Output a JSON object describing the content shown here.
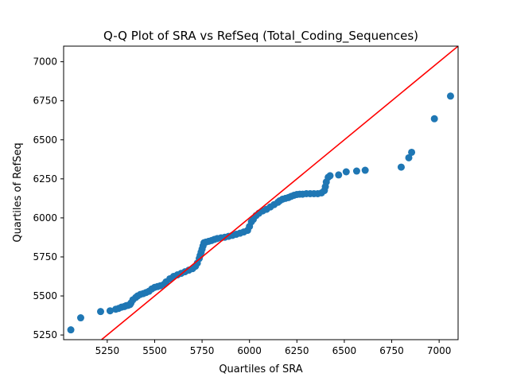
{
  "chart_data": {
    "type": "scatter",
    "title": "Q-Q Plot of SRA vs RefSeq (Total_Coding_Sequences)",
    "xlabel": "Quartiles of SRA",
    "ylabel": "Quartiles of RefSeq",
    "xlim": [
      5020,
      7100
    ],
    "ylim": [
      5220,
      7100
    ],
    "xticks": [
      5250,
      5500,
      5750,
      6000,
      6250,
      6500,
      6750,
      7000
    ],
    "yticks": [
      5250,
      5500,
      5750,
      6000,
      6250,
      6500,
      6750,
      7000
    ],
    "point_color": "#1f77b4",
    "reference_line": {
      "color": "#ff0000",
      "from": [
        5020,
        5020
      ],
      "to": [
        7100,
        7100
      ]
    },
    "grid": false,
    "series": [
      {
        "x": [
          5058,
          5110,
          5215,
          5265,
          5295,
          5310,
          5325,
          5340,
          5350,
          5360,
          5370,
          5375,
          5385,
          5400,
          5410,
          5425,
          5440,
          5455,
          5470,
          5485,
          5500,
          5515,
          5530,
          5550,
          5560,
          5580,
          5600,
          5620,
          5640,
          5660,
          5680,
          5700,
          5715,
          5725,
          5735,
          5740,
          5745,
          5750,
          5755,
          5760,
          5770,
          5785,
          5800,
          5815,
          5830,
          5850,
          5870,
          5890,
          5910,
          5930,
          5950,
          5970,
          5990,
          6000,
          6010,
          6020,
          6035,
          6050,
          6070,
          6090,
          6110,
          6130,
          6150,
          6160,
          6175,
          6190,
          6205,
          6220,
          6235,
          6250,
          6265,
          6280,
          6300,
          6320,
          6340,
          6360,
          6380,
          6395,
          6400,
          6405,
          6415,
          6425,
          6470,
          6510,
          6565,
          6610,
          6800,
          6840,
          6855,
          6975,
          7060
        ],
        "y": [
          5283,
          5360,
          5400,
          5405,
          5415,
          5420,
          5428,
          5432,
          5438,
          5440,
          5445,
          5455,
          5475,
          5490,
          5500,
          5510,
          5515,
          5522,
          5530,
          5545,
          5555,
          5560,
          5565,
          5575,
          5590,
          5610,
          5625,
          5635,
          5645,
          5655,
          5665,
          5675,
          5690,
          5710,
          5740,
          5760,
          5780,
          5800,
          5820,
          5840,
          5845,
          5850,
          5855,
          5862,
          5868,
          5872,
          5876,
          5882,
          5888,
          5895,
          5902,
          5910,
          5920,
          5945,
          5975,
          5990,
          6015,
          6030,
          6045,
          6055,
          6070,
          6085,
          6100,
          6110,
          6120,
          6125,
          6130,
          6138,
          6145,
          6150,
          6152,
          6152,
          6155,
          6155,
          6155,
          6155,
          6160,
          6175,
          6200,
          6230,
          6260,
          6270,
          6275,
          6295,
          6300,
          6305,
          6325,
          6385,
          6420,
          6635,
          6780
        ]
      }
    ]
  }
}
